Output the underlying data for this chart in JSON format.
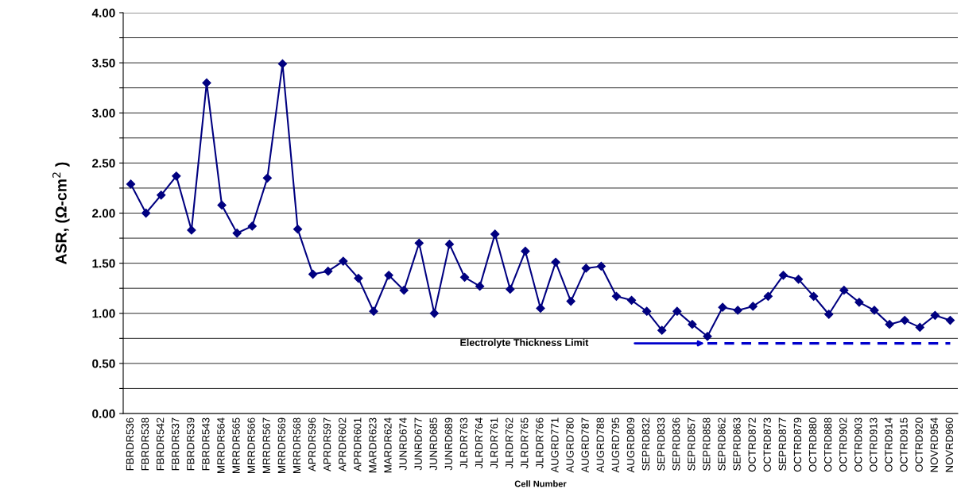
{
  "chart_data": {
    "type": "line",
    "xlabel": "Cell Number",
    "ylabel": "ASR, (Ω-cm$^{2}$ )",
    "categories": [
      "FBRDR536",
      "FBRDR538",
      "FBRDR542",
      "FBRDR537",
      "FBRDR539",
      "FBRDR543",
      "MRRDR564",
      "MRRDR565",
      "MRRDR566",
      "MRRDR567",
      "MRRDR569",
      "MRRDR568",
      "APRDR596",
      "APRDR597",
      "APRDR602",
      "APRDR601",
      "MARDR623",
      "MARDR624",
      "JUNRD674",
      "JUNRD677",
      "JUNRD685",
      "JUNRD689",
      "JLRDR763",
      "JLRDR764",
      "JLRDR761",
      "JLRDR762",
      "JLRDR765",
      "JLRDR766",
      "AUGRD771",
      "AUGRD780",
      "AUGRD787",
      "AUGRD788",
      "AUGRD795",
      "AUGRD809",
      "SEPRD832",
      "SEPRD833",
      "SEPRD836",
      "SEPRD857",
      "SEPRD858",
      "SEPRD862",
      "SEPRD863",
      "OCTRD872",
      "OCTRD873",
      "SEPRD877",
      "OCTRD879",
      "OCTRD880",
      "OCTRD888",
      "OCTRD902",
      "OCTRD903",
      "OCTRD913",
      "OCTRD914",
      "OCTRD915",
      "OCTRD920",
      "NOVRD954",
      "NOVRD960"
    ],
    "series": [
      {
        "color": "#000080",
        "marker": "diamond",
        "line_style": "solid",
        "values": [
          2.29,
          2.0,
          2.18,
          2.37,
          1.83,
          3.3,
          2.08,
          1.8,
          1.87,
          2.35,
          3.49,
          1.84,
          1.39,
          1.42,
          1.52,
          1.35,
          1.02,
          1.38,
          1.23,
          1.7,
          1.0,
          1.69,
          1.36,
          1.27,
          1.79,
          1.24,
          1.62,
          1.05,
          1.51,
          1.12,
          1.45,
          1.47,
          1.17,
          1.13,
          1.02,
          0.83,
          1.02,
          0.89,
          0.77,
          1.06,
          1.03,
          1.07,
          1.17,
          1.38,
          1.34,
          1.17,
          0.99,
          1.23,
          1.11,
          1.03,
          0.89,
          0.93,
          0.86,
          0.98,
          0.93
        ]
      },
      {
        "color": "#0000cc",
        "marker": "none",
        "line_style": "dashed",
        "values": [
          null,
          null,
          null,
          null,
          null,
          null,
          null,
          null,
          null,
          null,
          null,
          null,
          null,
          null,
          null,
          null,
          null,
          null,
          null,
          null,
          null,
          null,
          null,
          null,
          null,
          null,
          null,
          null,
          null,
          null,
          null,
          null,
          null,
          null,
          null,
          null,
          null,
          null,
          0.7,
          0.7,
          0.7,
          0.7,
          0.7,
          0.7,
          0.7,
          0.7,
          0.7,
          0.7,
          0.7,
          0.7,
          0.7,
          0.7,
          0.7,
          0.7,
          0.7
        ]
      }
    ],
    "annotations": [
      "Electrolyte Thickness Limit"
    ],
    "ylim": [
      0,
      4
    ],
    "yticks": [
      {
        "value": 0,
        "label": "0.00"
      },
      {
        "value": 0.25,
        "label": null
      },
      {
        "value": 0.5,
        "label": "0.50"
      },
      {
        "value": 0.75,
        "label": null
      },
      {
        "value": 1,
        "label": "1.00"
      },
      {
        "value": 1.25,
        "label": null
      },
      {
        "value": 1.5,
        "label": "1.50"
      },
      {
        "value": 1.75,
        "label": null
      },
      {
        "value": 2,
        "label": "2.00"
      },
      {
        "value": 2.25,
        "label": null
      },
      {
        "value": 2.5,
        "label": "2.50"
      },
      {
        "value": 2.75,
        "label": null
      },
      {
        "value": 3,
        "label": "3.00"
      },
      {
        "value": 3.25,
        "label": null
      },
      {
        "value": 3.5,
        "label": "3.50"
      },
      {
        "value": 3.75,
        "label": null
      },
      {
        "value": 4,
        "label": "4.00"
      }
    ],
    "grid": "y"
  }
}
